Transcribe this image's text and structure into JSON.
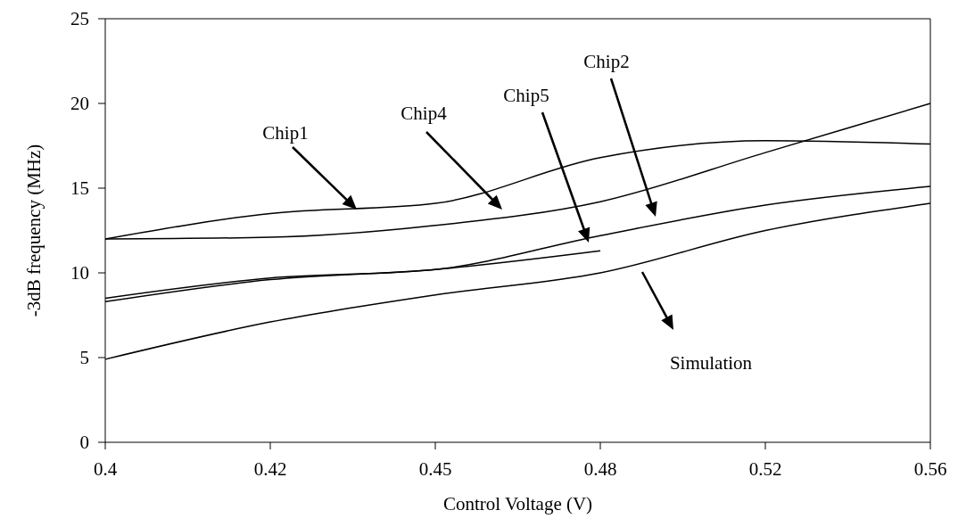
{
  "chart_data": {
    "type": "line",
    "xlabel": "Control Voltage (V)",
    "ylabel": "-3dB frequency (MHz)",
    "categories": [
      "0.4",
      "0.42",
      "0.45",
      "0.48",
      "0.52",
      "0.56"
    ],
    "series": [
      {
        "color": "#000000",
        "values": [
          12.0,
          13.5,
          14.1,
          16.8,
          17.8,
          17.6
        ]
      },
      {
        "color": "#000000",
        "values": [
          12.0,
          12.1,
          12.8,
          14.2,
          17.1,
          20.0
        ]
      },
      {
        "color": "#000000",
        "values": [
          8.3,
          9.6,
          10.2,
          11.3,
          null,
          null
        ]
      },
      {
        "color": "#000000",
        "values": [
          8.5,
          9.7,
          10.2,
          12.2,
          14.0,
          15.1
        ]
      },
      {
        "color": "#000000",
        "values": [
          4.9,
          7.1,
          8.7,
          10.0,
          12.5,
          14.1
        ]
      }
    ],
    "annotations": [
      "Chip1",
      "Chip4",
      "Chip5",
      "Chip2",
      "Simulation"
    ],
    "legend": false,
    "ylim": [
      0,
      25
    ],
    "yticks": [
      0,
      5,
      10,
      15,
      20,
      25
    ],
    "grid": false,
    "marker": "none",
    "line_style": "solid"
  }
}
